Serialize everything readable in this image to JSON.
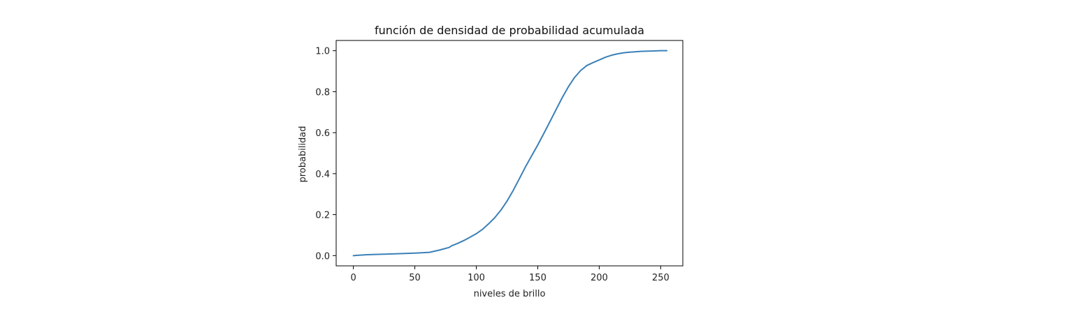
{
  "chart_data": {
    "type": "line",
    "title": "función de densidad de probabilidad acumulada",
    "xlabel": "niveles de brillo",
    "ylabel": "probabilidad",
    "xlim": [
      -14,
      268
    ],
    "ylim": [
      -0.05,
      1.05
    ],
    "xticks": [
      0,
      50,
      100,
      150,
      200,
      250
    ],
    "xtick_labels": [
      "0",
      "50",
      "100",
      "150",
      "200",
      "250"
    ],
    "yticks": [
      0.0,
      0.2,
      0.4,
      0.6,
      0.8,
      1.0
    ],
    "ytick_labels": [
      "0.0",
      "0.2",
      "0.4",
      "0.6",
      "0.8",
      "1.0"
    ],
    "grid": false,
    "line_color": "#3a80b8",
    "series": [
      {
        "x": [
          0,
          10,
          20,
          30,
          40,
          50,
          62,
          70,
          78,
          80,
          85,
          90,
          95,
          100,
          105,
          110,
          115,
          120,
          125,
          130,
          135,
          140,
          145,
          150,
          155,
          160,
          165,
          170,
          175,
          180,
          185,
          190,
          195,
          200,
          205,
          210,
          215,
          220,
          225,
          230,
          235,
          240,
          245,
          250,
          255
        ],
        "y": [
          0.0,
          0.004,
          0.006,
          0.008,
          0.01,
          0.012,
          0.016,
          0.027,
          0.04,
          0.048,
          0.06,
          0.074,
          0.09,
          0.107,
          0.128,
          0.155,
          0.185,
          0.222,
          0.266,
          0.318,
          0.375,
          0.433,
          0.487,
          0.54,
          0.597,
          0.655,
          0.714,
          0.772,
          0.825,
          0.87,
          0.904,
          0.928,
          0.942,
          0.955,
          0.968,
          0.978,
          0.985,
          0.99,
          0.993,
          0.995,
          0.997,
          0.998,
          0.999,
          1.0,
          1.0
        ]
      }
    ]
  }
}
